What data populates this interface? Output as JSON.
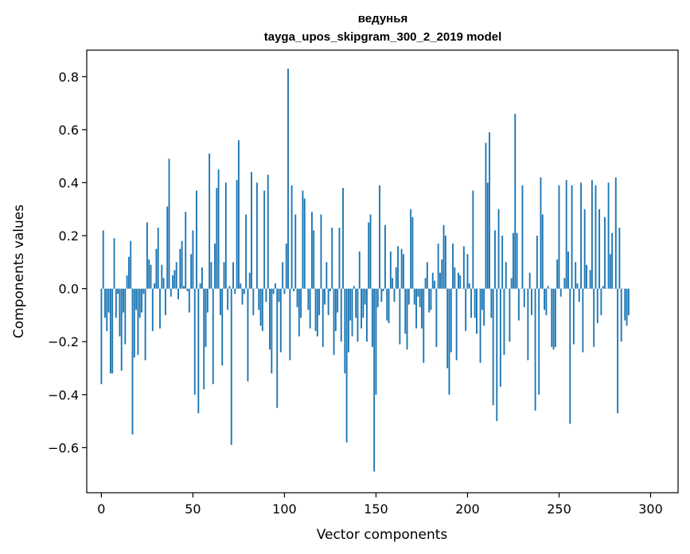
{
  "chart_data": {
    "type": "bar",
    "title": "ведунья",
    "subtitle": "tayga_upos_skipgram_300_2_2019 model",
    "xlabel": "Vector components",
    "ylabel": "Components values",
    "xlim": [
      -8,
      315
    ],
    "ylim": [
      -0.77,
      0.9
    ],
    "xticks": [
      0,
      50,
      100,
      150,
      200,
      250,
      300
    ],
    "xtick_labels": [
      "0",
      "50",
      "100",
      "150",
      "200",
      "250",
      "300"
    ],
    "yticks": [
      -0.6,
      -0.4,
      -0.2,
      0.0,
      0.2,
      0.4,
      0.6,
      0.8
    ],
    "ytick_labels": [
      "−0.6",
      "−0.4",
      "−0.2",
      "0.0",
      "0.2",
      "0.4",
      "0.6",
      "0.8"
    ],
    "grid": false,
    "bar_color": "#1f77b4",
    "values": [
      -0.36,
      0.22,
      -0.11,
      -0.16,
      -0.09,
      -0.32,
      -0.32,
      0.19,
      -0.11,
      -0.02,
      -0.18,
      -0.31,
      -0.09,
      -0.21,
      0.05,
      0.12,
      0.18,
      -0.55,
      -0.26,
      -0.08,
      -0.25,
      -0.11,
      -0.09,
      -0.02,
      -0.27,
      0.25,
      0.11,
      0.09,
      -0.16,
      0.02,
      0.15,
      0.23,
      -0.15,
      0.09,
      0.04,
      -0.1,
      0.31,
      0.49,
      -0.03,
      0.05,
      0.07,
      0.1,
      -0.04,
      0.15,
      0.18,
      0.01,
      0.29,
      -0.01,
      -0.09,
      0.13,
      0.22,
      -0.4,
      0.37,
      -0.47,
      0.02,
      0.08,
      -0.38,
      -0.22,
      -0.09,
      0.51,
      0.1,
      -0.36,
      0.17,
      0.38,
      0.45,
      -0.1,
      -0.29,
      0.1,
      0.4,
      -0.08,
      0.01,
      -0.59,
      0.1,
      -0.02,
      0.41,
      0.56,
      0.02,
      -0.06,
      -0.02,
      0.28,
      -0.35,
      0.06,
      0.44,
      -0.1,
      0.0,
      0.4,
      -0.08,
      -0.14,
      -0.16,
      0.37,
      -0.05,
      0.43,
      -0.23,
      -0.32,
      -0.02,
      0.02,
      -0.45,
      -0.05,
      -0.24,
      0.1,
      -0.02,
      0.17,
      0.83,
      -0.27,
      0.39,
      -0.01,
      0.28,
      -0.07,
      -0.18,
      -0.11,
      0.37,
      0.34,
      0.0,
      -0.08,
      -0.15,
      0.29,
      0.22,
      -0.16,
      -0.18,
      -0.1,
      0.28,
      -0.22,
      -0.06,
      0.1,
      -0.1,
      -0.01,
      0.23,
      -0.25,
      -0.16,
      -0.09,
      0.23,
      -0.2,
      0.38,
      -0.32,
      -0.58,
      -0.24,
      -0.12,
      -0.18,
      0.01,
      -0.11,
      -0.2,
      0.14,
      -0.15,
      -0.11,
      -0.06,
      -0.2,
      0.25,
      0.28,
      -0.22,
      -0.69,
      -0.4,
      -0.07,
      0.39,
      -0.05,
      -0.01,
      0.24,
      -0.12,
      -0.13,
      0.14,
      0.04,
      -0.05,
      0.08,
      0.16,
      -0.21,
      0.15,
      0.13,
      -0.17,
      -0.23,
      -0.06,
      0.3,
      0.27,
      -0.06,
      -0.15,
      -0.03,
      -0.07,
      -0.15,
      -0.28,
      0.04,
      0.1,
      -0.09,
      -0.08,
      0.06,
      0.03,
      -0.22,
      0.17,
      0.06,
      0.11,
      0.24,
      0.2,
      -0.3,
      -0.4,
      -0.24,
      0.17,
      0.08,
      -0.27,
      0.06,
      0.05,
      0.0,
      0.16,
      -0.16,
      0.13,
      0.02,
      -0.11,
      0.37,
      -0.11,
      -0.17,
      0.0,
      -0.28,
      -0.08,
      -0.14,
      0.55,
      0.4,
      0.59,
      -0.11,
      -0.44,
      0.22,
      -0.5,
      0.3,
      -0.37,
      0.2,
      -0.25,
      0.1,
      0.0,
      -0.2,
      0.04,
      0.21,
      0.66,
      0.21,
      -0.12,
      0.0,
      0.39,
      -0.07,
      0.0,
      -0.27,
      0.06,
      -0.1,
      0.0,
      -0.46,
      0.2,
      -0.4,
      0.42,
      0.28,
      -0.08,
      -0.1,
      0.01,
      0.0,
      -0.22,
      -0.23,
      -0.22,
      0.11,
      0.39,
      -0.03,
      0.0,
      0.04,
      0.41,
      0.14,
      -0.51,
      0.39,
      -0.21,
      0.1,
      0.02,
      -0.05,
      0.4,
      -0.24,
      0.3,
      0.09,
      0.0,
      0.07,
      0.41,
      -0.22,
      0.39,
      -0.13,
      0.3,
      -0.1,
      0.01,
      0.27,
      0.0,
      0.4,
      0.13,
      0.21,
      0.0,
      0.42,
      -0.47,
      0.23,
      -0.2,
      0.0,
      -0.12,
      -0.14,
      -0.1
    ]
  }
}
